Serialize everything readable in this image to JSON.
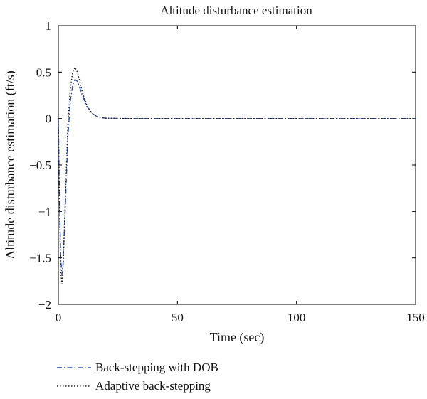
{
  "chart_data": {
    "type": "line",
    "title": "Altitude disturbance estimation",
    "xlabel": "Time (sec)",
    "ylabel": "Altitude disturbance estimation (ft/s)",
    "xlim": [
      0,
      150
    ],
    "ylim": [
      -2,
      1
    ],
    "xticks": [
      0,
      50,
      100,
      150
    ],
    "yticks": [
      1,
      0.5,
      0,
      -0.5,
      -1,
      -1.5,
      -2
    ],
    "xtick_labels": [
      "0",
      "50",
      "100",
      "150"
    ],
    "ytick_labels": [
      "1",
      "0.5",
      "0",
      "−0.5",
      "−1",
      "−1.5",
      "−2"
    ],
    "grid": false,
    "legend_position": "below",
    "series": [
      {
        "name": "Back-stepping with DOB",
        "color": "#2b4fa8",
        "style": "dashdot",
        "x": [
          0,
          0.5,
          1,
          1.5,
          2,
          3,
          4,
          5,
          6,
          7,
          8,
          9,
          10,
          12,
          14,
          16,
          18,
          20,
          25,
          30,
          40,
          60,
          80,
          100,
          120,
          150
        ],
        "y": [
          0,
          -0.9,
          -1.5,
          -1.68,
          -1.55,
          -0.9,
          -0.2,
          0.18,
          0.36,
          0.42,
          0.4,
          0.33,
          0.25,
          0.13,
          0.06,
          0.025,
          0.01,
          0.004,
          0.001,
          0,
          0,
          0,
          0,
          0,
          0,
          0
        ]
      },
      {
        "name": "Adaptive back-stepping",
        "color": "#222222",
        "style": "dotted",
        "x": [
          0,
          0.5,
          1,
          1.5,
          2,
          3,
          4,
          5,
          6,
          7,
          8,
          9,
          10,
          12,
          14,
          16,
          18,
          20,
          25,
          30,
          40,
          60,
          80,
          100,
          120,
          150
        ],
        "y": [
          0,
          -1.0,
          -1.65,
          -1.78,
          -1.6,
          -0.8,
          -0.05,
          0.32,
          0.5,
          0.55,
          0.5,
          0.4,
          0.29,
          0.14,
          0.06,
          0.025,
          0.01,
          0.004,
          0.001,
          0,
          0,
          0,
          0,
          0,
          0,
          0
        ]
      }
    ]
  }
}
